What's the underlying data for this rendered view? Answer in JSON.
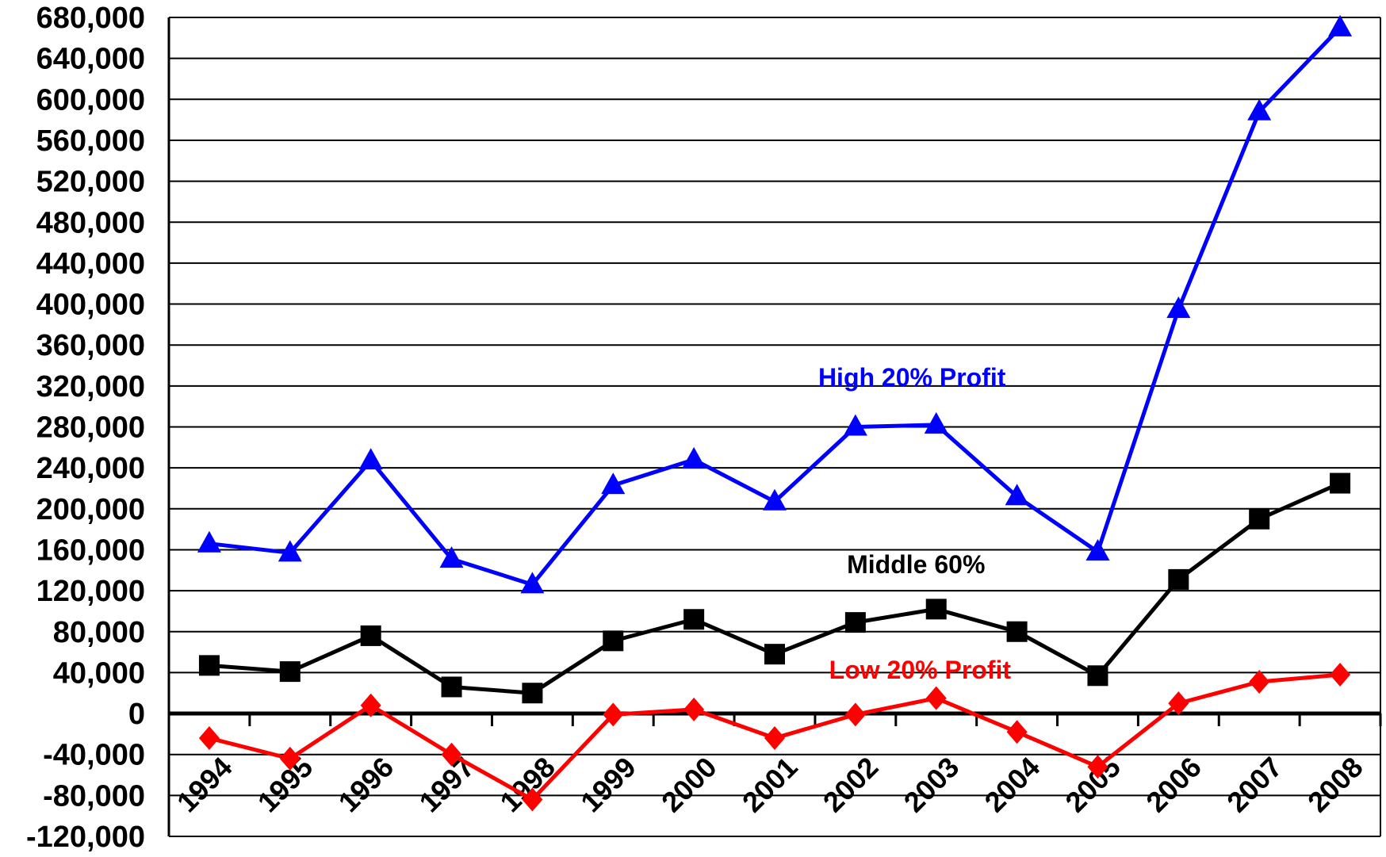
{
  "chart_data": {
    "type": "line",
    "x": [
      "1994",
      "1995",
      "1996",
      "1997",
      "1998",
      "1999",
      "2000",
      "2001",
      "2002",
      "2003",
      "2004",
      "2005",
      "2006",
      "2007",
      "2008"
    ],
    "ylim": [
      -120000,
      680000
    ],
    "yticks": [
      -120000,
      -80000,
      -40000,
      0,
      40000,
      80000,
      120000,
      160000,
      200000,
      240000,
      280000,
      320000,
      360000,
      400000,
      440000,
      480000,
      520000,
      560000,
      600000,
      640000,
      680000
    ],
    "ytick_labels": [
      "-120,000",
      "-80,000",
      "-40,000",
      "0",
      "40,000",
      "80,000",
      "120,000",
      "160,000",
      "200,000",
      "240,000",
      "280,000",
      "320,000",
      "360,000",
      "400,000",
      "440,000",
      "480,000",
      "520,000",
      "560,000",
      "600,000",
      "640,000",
      "680,000"
    ],
    "grid": "horizontal",
    "series": [
      {
        "name": "High 20% Profit",
        "color": "#0000ff",
        "marker": "triangle",
        "values": [
          166000,
          157000,
          247000,
          151000,
          126000,
          223000,
          248000,
          207000,
          280000,
          282000,
          212000,
          158000,
          395000,
          588000,
          670000
        ]
      },
      {
        "name": "Middle 60%",
        "color": "#000000",
        "marker": "square",
        "values": [
          47000,
          41000,
          76000,
          26000,
          20000,
          71000,
          92000,
          58000,
          89000,
          102000,
          80000,
          37000,
          131000,
          190000,
          225000
        ]
      },
      {
        "name": "Low 20% Profit",
        "color": "#ff0000",
        "marker": "diamond",
        "values": [
          -24000,
          -44000,
          8000,
          -40000,
          -84000,
          -1000,
          4000,
          -24000,
          -1000,
          15000,
          -18000,
          -52000,
          10000,
          31000,
          38000
        ]
      }
    ],
    "annotations": [
      {
        "text": "High 20% Profit",
        "color": "#0000ff",
        "x_index": 8.7,
        "y": 320000
      },
      {
        "text": "Middle 60%",
        "color": "#000000",
        "x_index": 8.75,
        "y": 137000
      },
      {
        "text": "Low 20% Profit",
        "color": "#ff0000",
        "x_index": 8.8,
        "y": 34000
      }
    ]
  }
}
